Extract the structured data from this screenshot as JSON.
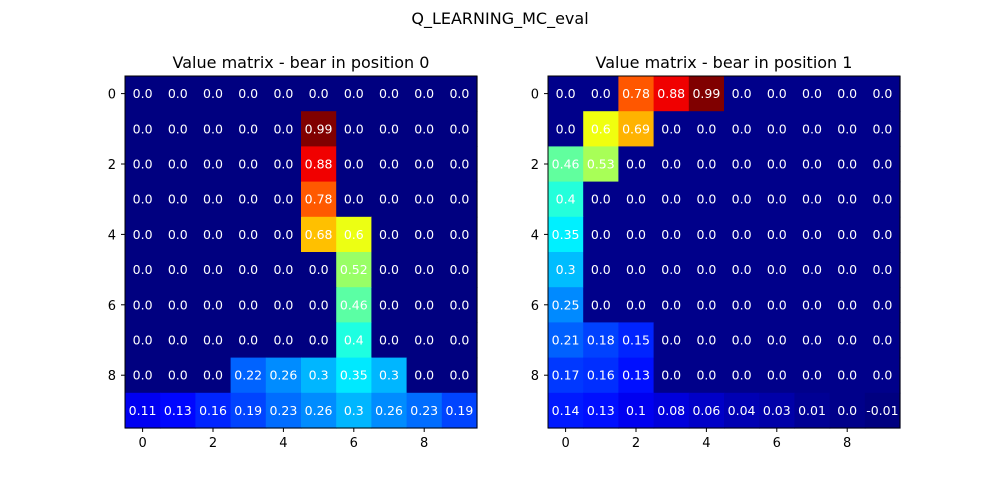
{
  "figure_title": "Q_LEARNING_MC_eval",
  "colormap": "jet",
  "chart_data": [
    {
      "type": "heatmap",
      "title": "Value matrix - bear in position 0",
      "xticks": [
        0,
        2,
        4,
        6,
        8
      ],
      "yticks": [
        0,
        2,
        4,
        6,
        8
      ],
      "vmin": 0.0,
      "vmax": 0.99,
      "labels": [
        [
          "0.0",
          "0.0",
          "0.0",
          "0.0",
          "0.0",
          "0.0",
          "0.0",
          "0.0",
          "0.0",
          "0.0"
        ],
        [
          "0.0",
          "0.0",
          "0.0",
          "0.0",
          "0.0",
          "0.99",
          "0.0",
          "0.0",
          "0.0",
          "0.0"
        ],
        [
          "0.0",
          "0.0",
          "0.0",
          "0.0",
          "0.0",
          "0.88",
          "0.0",
          "0.0",
          "0.0",
          "0.0"
        ],
        [
          "0.0",
          "0.0",
          "0.0",
          "0.0",
          "0.0",
          "0.78",
          "0.0",
          "0.0",
          "0.0",
          "0.0"
        ],
        [
          "0.0",
          "0.0",
          "0.0",
          "0.0",
          "0.0",
          "0.68",
          "0.6",
          "0.0",
          "0.0",
          "0.0"
        ],
        [
          "0.0",
          "0.0",
          "0.0",
          "0.0",
          "0.0",
          "0.0",
          "0.52",
          "0.0",
          "0.0",
          "0.0"
        ],
        [
          "0.0",
          "0.0",
          "0.0",
          "0.0",
          "0.0",
          "0.0",
          "0.46",
          "0.0",
          "0.0",
          "0.0"
        ],
        [
          "0.0",
          "0.0",
          "0.0",
          "0.0",
          "0.0",
          "0.0",
          "0.4",
          "0.0",
          "0.0",
          "0.0"
        ],
        [
          "0.0",
          "0.0",
          "0.0",
          "0.22",
          "0.26",
          "0.3",
          "0.35",
          "0.3",
          "0.0",
          "0.0"
        ],
        [
          "0.11",
          "0.13",
          "0.16",
          "0.19",
          "0.23",
          "0.26",
          "0.3",
          "0.26",
          "0.23",
          "0.19"
        ]
      ]
    },
    {
      "type": "heatmap",
      "title": "Value matrix - bear in position 1",
      "xticks": [
        0,
        2,
        4,
        6,
        8
      ],
      "yticks": [
        0,
        2,
        4,
        6,
        8
      ],
      "vmin": -0.01,
      "vmax": 0.99,
      "labels": [
        [
          "0.0",
          "0.0",
          "0.78",
          "0.88",
          "0.99",
          "0.0",
          "0.0",
          "0.0",
          "0.0",
          "0.0"
        ],
        [
          "0.0",
          "0.6",
          "0.69",
          "0.0",
          "0.0",
          "0.0",
          "0.0",
          "0.0",
          "0.0",
          "0.0"
        ],
        [
          "0.46",
          "0.53",
          "0.0",
          "0.0",
          "0.0",
          "0.0",
          "0.0",
          "0.0",
          "0.0",
          "0.0"
        ],
        [
          "0.4",
          "0.0",
          "0.0",
          "0.0",
          "0.0",
          "0.0",
          "0.0",
          "0.0",
          "0.0",
          "0.0"
        ],
        [
          "0.35",
          "0.0",
          "0.0",
          "0.0",
          "0.0",
          "0.0",
          "0.0",
          "0.0",
          "0.0",
          "0.0"
        ],
        [
          "0.3",
          "0.0",
          "0.0",
          "0.0",
          "0.0",
          "0.0",
          "0.0",
          "0.0",
          "0.0",
          "0.0"
        ],
        [
          "0.25",
          "0.0",
          "0.0",
          "0.0",
          "0.0",
          "0.0",
          "0.0",
          "0.0",
          "0.0",
          "0.0"
        ],
        [
          "0.21",
          "0.18",
          "0.15",
          "0.0",
          "0.0",
          "0.0",
          "0.0",
          "0.0",
          "0.0",
          "0.0"
        ],
        [
          "0.17",
          "0.16",
          "0.13",
          "0.0",
          "0.0",
          "0.0",
          "0.0",
          "0.0",
          "0.0",
          "0.0"
        ],
        [
          "0.14",
          "0.13",
          "0.1",
          "0.08",
          "0.06",
          "0.04",
          "0.03",
          "0.01",
          "0.0",
          "-0.01"
        ]
      ]
    }
  ]
}
